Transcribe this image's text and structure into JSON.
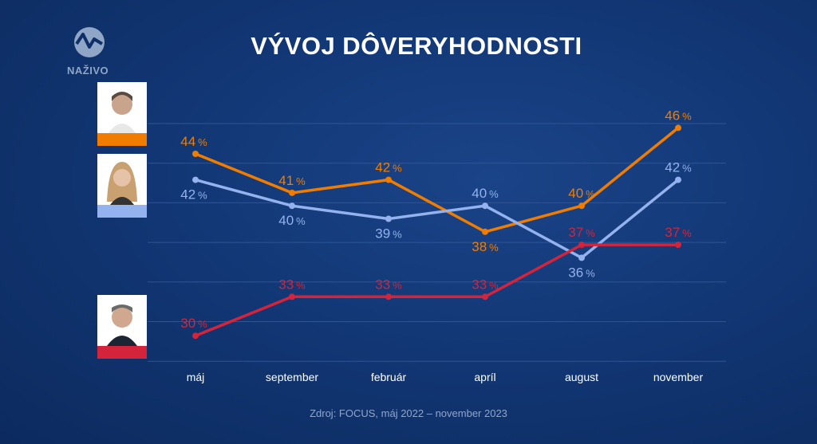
{
  "logo": {
    "text": "NAŽIVO"
  },
  "chart_data": {
    "type": "line",
    "title": "VÝVOJ DÔVERYHODNOSTI",
    "categories": [
      "máj",
      "september",
      "február",
      "apríl",
      "august",
      "november"
    ],
    "unit": "%",
    "ylim": [
      28,
      47.5
    ],
    "grid": true,
    "series": [
      {
        "color": "#f07d00",
        "values": [
          44,
          41,
          42,
          38,
          40,
          46
        ],
        "label_pos": [
          "above",
          "above",
          "above",
          "below",
          "above",
          "above"
        ]
      },
      {
        "color": "#93b2ee",
        "values": [
          42,
          40,
          39,
          40,
          36,
          42
        ],
        "label_pos": [
          "below",
          "below",
          "below",
          "above",
          "below",
          "above"
        ]
      },
      {
        "color": "#d3243b",
        "values": [
          30,
          33,
          33,
          33,
          37,
          37
        ],
        "label_pos": [
          "above",
          "above",
          "above",
          "above",
          "above",
          "above"
        ]
      }
    ],
    "source": "Zdroj: FOCUS, máj 2022 – november 2023"
  }
}
